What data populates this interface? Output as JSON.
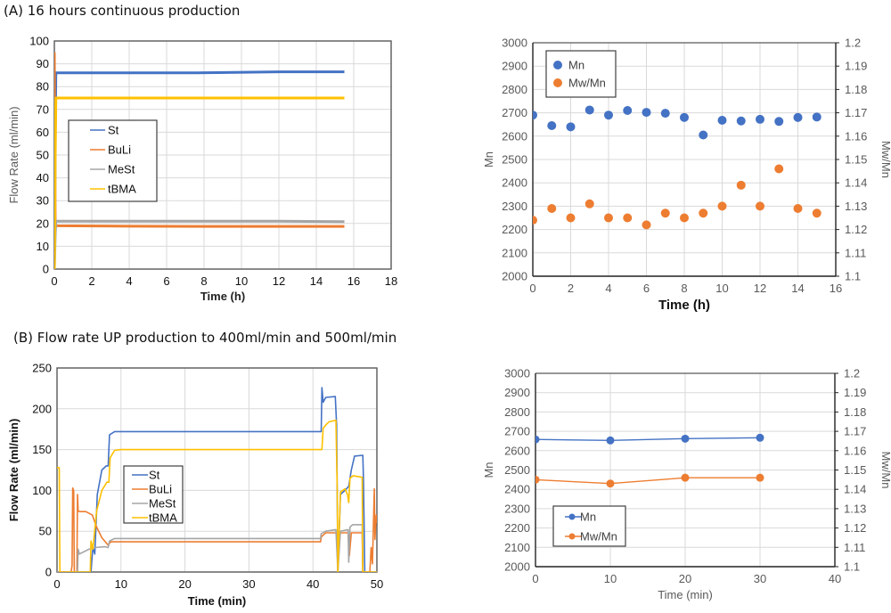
{
  "headings": {
    "a": "(A) 16 hours continuous production",
    "b": "(B) Flow rate UP production to 400ml/min and 500ml/min"
  },
  "colors": {
    "St": "#4472C4",
    "BuLi": "#ED7D31",
    "MeSt": "#A5A5A5",
    "tBMA": "#FFC000",
    "Mn": "#4472C4",
    "MwMn": "#ED7D31",
    "grid": "#D9D9D9",
    "axis": "#595959"
  },
  "chart_data": [
    {
      "id": "a-flow",
      "type": "line",
      "title": "",
      "xlabel": "Time (h)",
      "ylabel": "Flow Rate (ml/min)",
      "xlim": [
        0,
        18
      ],
      "ylim": [
        0,
        100
      ],
      "xticks": [
        "0",
        "2",
        "4",
        "6",
        "8",
        "10",
        "12",
        "14",
        "16",
        "18"
      ],
      "yticks": [
        "0",
        "10",
        "20",
        "30",
        "40",
        "50",
        "60",
        "70",
        "80",
        "90",
        "100"
      ],
      "grid": true,
      "legend": "center-left",
      "legend_entries": [
        "St",
        "BuLi",
        "MeSt",
        "tBMA"
      ],
      "series": [
        {
          "name": "St",
          "x": [
            0,
            0.05,
            0.08,
            3.8,
            7.6,
            12,
            15.5
          ],
          "y": [
            0,
            60,
            86,
            86,
            86,
            86.5,
            86.5
          ]
        },
        {
          "name": "BuLi",
          "x": [
            0,
            0.02,
            0.05,
            0.08,
            4,
            8,
            12,
            15.5
          ],
          "y": [
            95,
            60,
            19,
            19,
            18.8,
            18.7,
            18.7,
            18.7
          ]
        },
        {
          "name": "MeSt",
          "x": [
            0,
            0.05,
            0.08,
            4,
            8,
            12,
            15.5
          ],
          "y": [
            0,
            15,
            21,
            21,
            21,
            21,
            20.8
          ]
        },
        {
          "name": "tBMA",
          "x": [
            0,
            0.05,
            0.08,
            4,
            8,
            12,
            15.5
          ],
          "y": [
            0,
            50,
            75,
            75,
            75,
            75,
            75
          ]
        }
      ]
    },
    {
      "id": "a-mn",
      "type": "scatter",
      "title": "",
      "xlabel": "Time (h)",
      "ylabel": "Mn",
      "y2label": "Mw/Mn",
      "xlim": [
        0,
        16
      ],
      "ylim": [
        2000,
        3000
      ],
      "y2lim": [
        1.1,
        1.2
      ],
      "xticks": [
        "0",
        "2",
        "4",
        "6",
        "8",
        "10",
        "12",
        "14",
        "16"
      ],
      "yticks": [
        "2000",
        "2100",
        "2200",
        "2300",
        "2400",
        "2500",
        "2600",
        "2700",
        "2800",
        "2900",
        "3000"
      ],
      "y2ticks": [
        "1.1",
        "1.11",
        "1.12",
        "1.13",
        "1.14",
        "1.15",
        "1.16",
        "1.17",
        "1.18",
        "1.19",
        "1.2"
      ],
      "grid": true,
      "legend": "top-left",
      "legend_entries": [
        "Mn",
        "Mw/Mn"
      ],
      "series": [
        {
          "name": "Mn",
          "axis": "left",
          "x": [
            0,
            1,
            2,
            3,
            4,
            5,
            6,
            7,
            8,
            9,
            10,
            11,
            12,
            13,
            14,
            15
          ],
          "y": [
            2690,
            2645,
            2640,
            2712,
            2690,
            2710,
            2702,
            2698,
            2680,
            2605,
            2668,
            2665,
            2672,
            2663,
            2680,
            2682
          ]
        },
        {
          "name": "Mw/Mn",
          "axis": "right",
          "x": [
            0,
            1,
            2,
            3,
            4,
            5,
            6,
            7,
            8,
            9,
            10,
            11,
            12,
            13,
            14,
            15
          ],
          "y": [
            1.124,
            1.129,
            1.125,
            1.131,
            1.125,
            1.125,
            1.122,
            1.127,
            1.125,
            1.127,
            1.13,
            1.139,
            1.13,
            1.146,
            1.129,
            1.127
          ]
        }
      ]
    },
    {
      "id": "b-flow",
      "type": "line",
      "title": "",
      "xlabel": "Time (min)",
      "ylabel": "Flow Rate (ml/min)",
      "xlim": [
        0,
        50
      ],
      "ylim": [
        0,
        250
      ],
      "xticks": [
        "0",
        "10",
        "20",
        "30",
        "40",
        "50"
      ],
      "yticks": [
        "0",
        "50",
        "100",
        "150",
        "200",
        "250"
      ],
      "grid": true,
      "legend": "center",
      "legend_entries": [
        "St",
        "BuLi",
        "MeSt",
        "tBMA"
      ],
      "series": [
        {
          "name": "St",
          "x": [
            0,
            5.3,
            5.6,
            5.9,
            6.3,
            7,
            7.7,
            8.0,
            8.2,
            9,
            10,
            41.3,
            41.4,
            41.6,
            42,
            43.5,
            43.7,
            43.9,
            44.3,
            45,
            45.6,
            46,
            46.5,
            47.8,
            47.9,
            48.1,
            50
          ],
          "y": [
            0,
            0,
            30,
            22,
            95,
            125,
            130,
            130,
            168,
            172,
            172,
            172,
            226,
            208,
            214,
            215,
            180,
            0,
            95,
            100,
            105,
            125,
            142,
            143,
            115,
            0,
            0
          ]
        },
        {
          "name": "BuLi",
          "x": [
            0,
            2.2,
            2.35,
            2.45,
            2.6,
            2.7,
            3.1,
            3.2,
            3.3,
            3.5,
            4.5,
            5.5,
            6.2,
            7,
            8,
            8.4,
            9,
            41.2,
            41.3,
            42,
            43.6,
            43.8,
            44.2,
            45.5,
            45.7,
            46,
            47.7,
            47.8,
            48.9,
            49.1,
            49.3,
            49.6,
            49.7,
            49.9,
            50
          ],
          "y": [
            0,
            0,
            8,
            103,
            100,
            0,
            0,
            95,
            75,
            74,
            74,
            70,
            55,
            42,
            33,
            37,
            37,
            37,
            43,
            48,
            48,
            45,
            48,
            48,
            20,
            48,
            48,
            0,
            0,
            30,
            10,
            102,
            40,
            70,
            60
          ]
        },
        {
          "name": "MeSt",
          "x": [
            0,
            3.2,
            3.3,
            3.5,
            5,
            6,
            7.5,
            8,
            8.2,
            9,
            10,
            41.2,
            41.3,
            42,
            43.6,
            43.9,
            44.3,
            45.5,
            45.6,
            45.8,
            46.2,
            47.7,
            47.8,
            50
          ],
          "y": [
            0,
            0,
            28,
            22,
            28,
            30,
            31,
            30,
            38,
            41,
            41,
            41,
            47,
            50,
            52,
            0,
            50,
            52,
            12,
            55,
            58,
            58,
            0,
            0
          ]
        },
        {
          "name": "tBMA",
          "x": [
            0,
            0.1,
            0.35,
            0.45,
            5.2,
            5.3,
            5.6,
            6.2,
            7,
            7.8,
            8.1,
            8.3,
            9,
            10,
            41.4,
            41.6,
            42,
            42.5,
            43.6,
            43.8,
            43.9,
            44.3,
            45,
            45.4,
            45.6,
            45.8,
            46.3,
            47.7,
            47.8,
            50
          ],
          "y": [
            128,
            128,
            128,
            0,
            0,
            38,
            28,
            75,
            100,
            110,
            110,
            140,
            149,
            150,
            150,
            176,
            180,
            184,
            186,
            100,
            0,
            98,
            102,
            95,
            85,
            115,
            118,
            116,
            0,
            0
          ]
        }
      ]
    },
    {
      "id": "b-mn",
      "type": "line",
      "title": "",
      "xlabel": "Time (min)",
      "ylabel": "Mn",
      "y2label": "Mw/Mn",
      "xlim": [
        0,
        40
      ],
      "ylim": [
        2000,
        3000
      ],
      "y2lim": [
        1.1,
        1.2
      ],
      "xticks": [
        "0",
        "10",
        "20",
        "30",
        "40"
      ],
      "yticks": [
        "2000",
        "2100",
        "2200",
        "2300",
        "2400",
        "2500",
        "2600",
        "2700",
        "2800",
        "2900",
        "3000"
      ],
      "y2ticks": [
        "1.1",
        "1.11",
        "1.12",
        "1.13",
        "1.14",
        "1.15",
        "1.16",
        "1.17",
        "1.18",
        "1.19",
        "1.2"
      ],
      "grid": true,
      "legend": "bottom-left",
      "legend_entries": [
        "Mn",
        "Mw/Mn"
      ],
      "series": [
        {
          "name": "Mn",
          "axis": "left",
          "x": [
            0,
            10,
            20,
            30
          ],
          "y": [
            2658,
            2653,
            2662,
            2667
          ]
        },
        {
          "name": "Mw/Mn",
          "axis": "right",
          "x": [
            0,
            10,
            20,
            30
          ],
          "y": [
            1.145,
            1.143,
            1.146,
            1.146
          ]
        }
      ]
    }
  ]
}
